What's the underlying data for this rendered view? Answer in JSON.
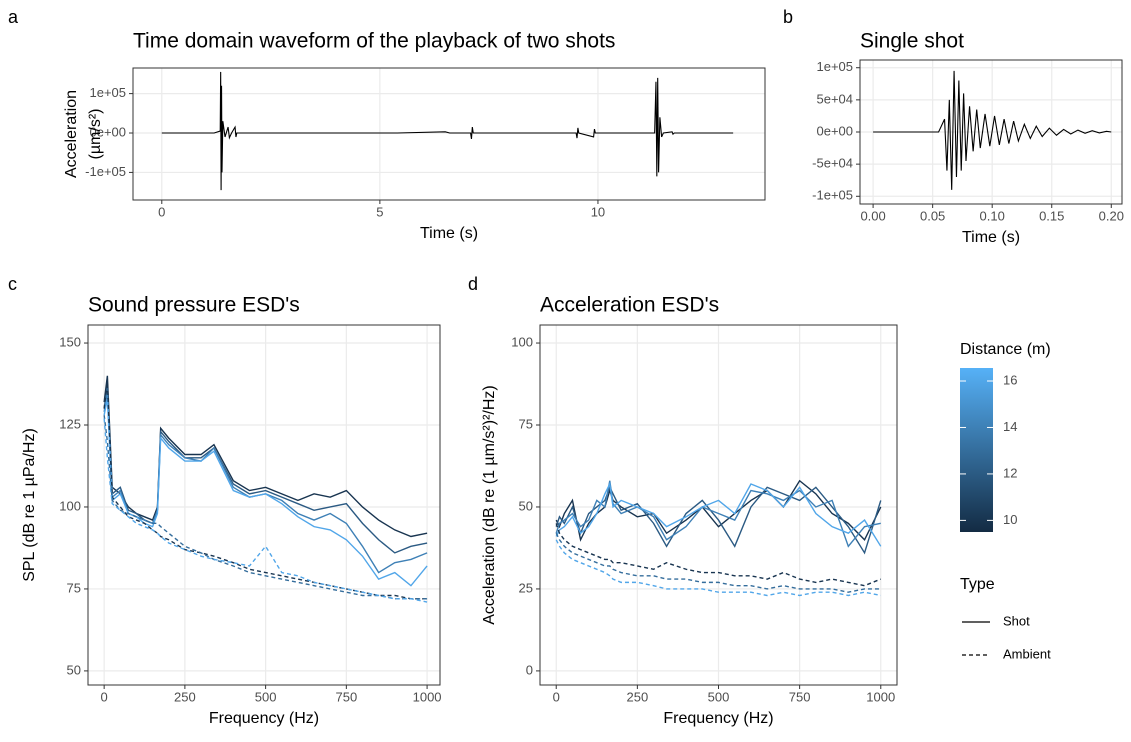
{
  "chart_data": [
    {
      "type": "line",
      "label": "a",
      "title": "Time domain waveform of the playback of two shots",
      "xlabel": "Time (s)",
      "ylabel": [
        "Acceleration",
        "(µm/s²)"
      ],
      "xlim": [
        -0.66,
        13.83
      ],
      "ylim": [
        -170000,
        165000
      ],
      "xticks": [
        0,
        5,
        10
      ],
      "yticks": [
        {
          "value": -100000,
          "label": "-1e+05"
        },
        {
          "value": 0,
          "label": "0e+00"
        },
        {
          "value": 100000,
          "label": "1e+05"
        }
      ],
      "grid": true,
      "x": [
        0,
        1.2,
        1.34,
        1.35,
        1.36,
        1.37,
        1.38,
        1.4,
        1.45,
        1.52,
        1.55,
        1.6,
        1.68,
        1.7,
        1.72,
        5.4,
        6.5,
        6.6,
        7.08,
        7.1,
        7.12,
        7.14,
        9.5,
        9.52,
        9.54,
        9.56,
        9.9,
        9.92,
        9.94,
        11.3,
        11.33,
        11.35,
        11.37,
        11.39,
        11.42,
        11.46,
        11.5,
        11.7,
        11.72,
        11.75,
        13.1
      ],
      "series": [
        {
          "color": "#000000",
          "linetype": "solid",
          "values": [
            0,
            0,
            5000,
            155000,
            -145000,
            120000,
            -100000,
            30000,
            -10000,
            15000,
            -12000,
            0,
            15000,
            -10000,
            0,
            0,
            3000,
            0,
            0,
            -15000,
            15000,
            0,
            0,
            -13000,
            13000,
            0,
            -10000,
            10000,
            0,
            0,
            130000,
            -110000,
            140000,
            -100000,
            40000,
            -10000,
            0,
            3000,
            -3000,
            0,
            0
          ]
        }
      ]
    },
    {
      "type": "line",
      "label": "b",
      "title": "Single shot",
      "xlabel": "Time (s)",
      "xlim": [
        -0.011,
        0.209
      ],
      "ylim": [
        -112000,
        112000
      ],
      "xticks": [
        {
          "value": 0,
          "label": "0.00"
        },
        0.05,
        {
          "value": 0.1,
          "label": "0.10"
        },
        0.15,
        {
          "value": 0.2,
          "label": "0.20"
        }
      ],
      "yticks": [
        {
          "value": -100000,
          "label": "-1e+05"
        },
        {
          "value": -50000,
          "label": "-5e+04"
        },
        {
          "value": 0,
          "label": "0e+00"
        },
        {
          "value": 50000,
          "label": "5e+04"
        },
        {
          "value": 100000,
          "label": "1e+05"
        }
      ],
      "grid": true,
      "x": [
        0,
        0.055,
        0.06,
        0.062,
        0.064,
        0.066,
        0.068,
        0.07,
        0.072,
        0.074,
        0.076,
        0.078,
        0.081,
        0.084,
        0.087,
        0.09,
        0.094,
        0.098,
        0.102,
        0.106,
        0.11,
        0.114,
        0.118,
        0.122,
        0.127,
        0.132,
        0.137,
        0.142,
        0.148,
        0.154,
        0.16,
        0.166,
        0.172,
        0.178,
        0.184,
        0.19,
        0.196,
        0.2
      ],
      "series": [
        {
          "color": "#000000",
          "linetype": "solid",
          "values": [
            0,
            0,
            20000,
            -60000,
            50000,
            -90000,
            95000,
            -70000,
            80000,
            -60000,
            60000,
            -45000,
            40000,
            -30000,
            35000,
            -25000,
            28000,
            -22000,
            25000,
            -20000,
            20000,
            -18000,
            17000,
            -14000,
            12000,
            -10000,
            9000,
            -7000,
            6000,
            -5000,
            4000,
            -3000,
            3000,
            -2000,
            2000,
            -1500,
            1000,
            0
          ]
        }
      ]
    },
    {
      "type": "line",
      "label": "c",
      "title": "Sound pressure ESD's",
      "xlabel": "Frequency (Hz)",
      "ylabel": [
        "SPL (dB re 1 µPa/Hz)"
      ],
      "xlim": [
        -50,
        1040
      ],
      "ylim": [
        45.7,
        155.5
      ],
      "xticks": [
        0,
        250,
        500,
        750,
        1000
      ],
      "yticks": [
        50,
        75,
        100,
        125,
        150
      ],
      "grid": true,
      "x": [
        0,
        10,
        25,
        50,
        75,
        100,
        125,
        150,
        165,
        175,
        200,
        250,
        300,
        340,
        400,
        450,
        500,
        550,
        600,
        650,
        700,
        750,
        800,
        850,
        900,
        950,
        1000
      ],
      "series": [
        {
          "distance": 10,
          "linetype": "solid",
          "values": [
            132,
            140,
            106,
            104,
            100,
            98,
            97,
            96,
            100,
            124,
            121,
            116,
            116,
            119,
            108,
            105,
            106,
            104,
            102,
            104,
            103,
            105,
            100,
            96,
            93,
            91,
            92
          ]
        },
        {
          "distance": 12,
          "linetype": "solid",
          "values": [
            130,
            137,
            104,
            106,
            99,
            98,
            96,
            95,
            99,
            123,
            120,
            115,
            115,
            118,
            107,
            104,
            105,
            103,
            101,
            99,
            100,
            101,
            95,
            90,
            86,
            88,
            89
          ]
        },
        {
          "distance": 14,
          "linetype": "solid",
          "values": [
            129,
            135,
            103,
            105,
            98,
            97,
            96,
            95,
            99,
            122,
            119,
            115,
            114,
            118,
            106,
            103,
            104,
            102,
            98,
            96,
            98,
            95,
            88,
            80,
            83,
            84,
            86
          ]
        },
        {
          "distance": 16,
          "linetype": "solid",
          "values": [
            128,
            133,
            102,
            104,
            98,
            97,
            95,
            94,
            98,
            121,
            118,
            114,
            114,
            117,
            105,
            103,
            104,
            101,
            97,
            94,
            93,
            90,
            85,
            78,
            80,
            76,
            82
          ]
        },
        {
          "distance": 10,
          "linetype": "dashed",
          "values": [
            130,
            138,
            103,
            100,
            97,
            96,
            95,
            93,
            92,
            91,
            90,
            87,
            86,
            85,
            83,
            81,
            80,
            79,
            78,
            77,
            76,
            75,
            74,
            73,
            73,
            72,
            72
          ]
        },
        {
          "distance": 13,
          "linetype": "dashed",
          "values": [
            128,
            120,
            102,
            99,
            98,
            97,
            96,
            95,
            95,
            94,
            92,
            88,
            86,
            84,
            82,
            80,
            79,
            78,
            77,
            76,
            75,
            74,
            73,
            73,
            72,
            72,
            72
          ]
        },
        {
          "distance": 16,
          "linetype": "dashed",
          "values": [
            127,
            115,
            101,
            99,
            97,
            95,
            94,
            93,
            92,
            91,
            89,
            87,
            85,
            84,
            83,
            82,
            88,
            80,
            79,
            77,
            76,
            75,
            74,
            73,
            72,
            72,
            71
          ]
        }
      ]
    },
    {
      "type": "line",
      "label": "d",
      "title": "Acceleration ESD's",
      "xlabel": "Frequency (Hz)",
      "ylabel": [
        "Acceleration (dB re (1 µm/s²)²/Hz)"
      ],
      "xlim": [
        -50,
        1050
      ],
      "ylim": [
        -4.3,
        105.5
      ],
      "xticks": [
        0,
        250,
        500,
        750,
        1000
      ],
      "yticks": [
        0,
        25,
        50,
        75,
        100
      ],
      "grid": true,
      "x": [
        0,
        10,
        25,
        50,
        75,
        100,
        125,
        150,
        165,
        175,
        200,
        250,
        300,
        340,
        400,
        450,
        500,
        550,
        600,
        650,
        700,
        750,
        800,
        850,
        900,
        950,
        1000
      ],
      "series": [
        {
          "distance": 10,
          "linetype": "solid",
          "values": [
            46,
            44,
            48,
            52,
            40,
            45,
            48,
            50,
            55,
            52,
            50,
            47,
            48,
            42,
            46,
            50,
            44,
            48,
            52,
            55,
            50,
            58,
            54,
            48,
            45,
            40,
            50
          ]
        },
        {
          "distance": 12,
          "linetype": "solid",
          "values": [
            44,
            47,
            45,
            50,
            42,
            48,
            50,
            52,
            56,
            54,
            49,
            51,
            45,
            38,
            48,
            52,
            46,
            38,
            50,
            56,
            54,
            52,
            56,
            50,
            44,
            36,
            52
          ]
        },
        {
          "distance": 14,
          "linetype": "solid",
          "values": [
            42,
            45,
            46,
            48,
            44,
            46,
            52,
            50,
            58,
            51,
            48,
            50,
            47,
            40,
            44,
            50,
            48,
            46,
            55,
            54,
            52,
            55,
            50,
            52,
            38,
            44,
            45
          ]
        },
        {
          "distance": 16,
          "linetype": "solid",
          "values": [
            41,
            43,
            44,
            47,
            42,
            44,
            48,
            54,
            57,
            50,
            52,
            50,
            48,
            44,
            47,
            50,
            52,
            48,
            57,
            55,
            50,
            56,
            48,
            44,
            42,
            46,
            38
          ]
        },
        {
          "distance": 10,
          "linetype": "dashed",
          "values": [
            45,
            42,
            40,
            38,
            37,
            36,
            35,
            34,
            34,
            33,
            33,
            32,
            31,
            33,
            31,
            30,
            30,
            29,
            29,
            28,
            30,
            28,
            27,
            28,
            27,
            26,
            28
          ]
        },
        {
          "distance": 13,
          "linetype": "dashed",
          "values": [
            42,
            40,
            38,
            36,
            35,
            34,
            33,
            32,
            32,
            31,
            30,
            29,
            29,
            28,
            28,
            27,
            27,
            26,
            26,
            25,
            26,
            25,
            25,
            25,
            24,
            25,
            25
          ]
        },
        {
          "distance": 16,
          "linetype": "dashed",
          "values": [
            40,
            38,
            36,
            34,
            33,
            32,
            31,
            30,
            29,
            28,
            27,
            27,
            26,
            25,
            25,
            25,
            24,
            24,
            24,
            23,
            24,
            23,
            24,
            24,
            23,
            24,
            23
          ]
        }
      ]
    }
  ],
  "legend": {
    "color": {
      "title": "Distance (m)",
      "lim": [
        9.5,
        16.56
      ],
      "ticks": [
        10,
        12,
        14,
        16
      ],
      "colors": [
        "#132B43",
        "#56B1F7"
      ]
    },
    "linetype": {
      "title": "Type",
      "entries": [
        {
          "label": "Shot",
          "dash": "solid"
        },
        {
          "label": "Ambient",
          "dash": "dashed"
        }
      ]
    }
  }
}
